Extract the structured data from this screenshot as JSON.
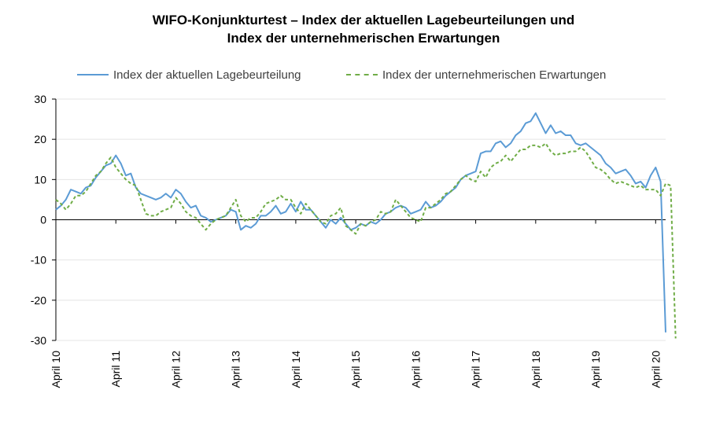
{
  "chart_data": {
    "type": "line",
    "title_lines": [
      "WIFO-Konjunkturtest – Index der aktuellen Lagebeurteilungen und",
      "Index der unternehmerischen Erwartungen"
    ],
    "xlabel": "",
    "ylabel": "",
    "ylim": [
      -30,
      30
    ],
    "yticks": [
      -30,
      -20,
      -10,
      0,
      10,
      20,
      30
    ],
    "x_tick_labels": [
      "April 10",
      "April 11",
      "April 12",
      "April 13",
      "April 14",
      "April 15",
      "April 16",
      "April 17",
      "April 18",
      "April 19",
      "April 20"
    ],
    "grid": "horizontal",
    "legend_position": "top",
    "series": [
      {
        "name": "Index der aktuellen Lagebeurteilung",
        "color": "#5b9bd5",
        "style": "solid",
        "values": [
          2.5,
          3.5,
          5,
          7.5,
          7,
          6.5,
          8,
          8.5,
          10.5,
          12,
          13.5,
          14,
          16,
          14,
          11,
          11.5,
          8,
          6.5,
          6,
          5.5,
          5,
          5.5,
          6.5,
          5.5,
          7.5,
          6.5,
          4.5,
          3,
          3.5,
          1,
          0.5,
          -0.5,
          0,
          0.5,
          1,
          2.5,
          2,
          -2.5,
          -1.5,
          -2,
          -1,
          1,
          1,
          2,
          3.5,
          1.5,
          2,
          4,
          2,
          4.5,
          2.5,
          2.5,
          1,
          -0.5,
          -2,
          0,
          -1,
          0.5,
          -1,
          -2.5,
          -2,
          -1,
          -1.5,
          -0.5,
          -1,
          0,
          1.5,
          2,
          3,
          3.5,
          3,
          1.5,
          2,
          2.5,
          4.5,
          3,
          3.5,
          4.5,
          6,
          7,
          8,
          10,
          11,
          11.5,
          12,
          16.5,
          17,
          17,
          19,
          19.5,
          18,
          19,
          21,
          22,
          24,
          24.5,
          26.5,
          24,
          21.5,
          23.5,
          21.5,
          22,
          21,
          21,
          19,
          18.5,
          19,
          18,
          17,
          16,
          14,
          13,
          11.5,
          12,
          12.5,
          11,
          9,
          9.5,
          8,
          11,
          13,
          9.5,
          -28
        ]
      },
      {
        "name": "Index der unternehmerischen Erwartungen",
        "color": "#70ad47",
        "style": "dashed",
        "values": [
          5,
          4,
          2.5,
          4,
          6,
          6,
          7,
          9,
          11,
          12,
          14,
          15.5,
          13,
          11.5,
          10,
          9,
          8.5,
          5,
          1.5,
          1,
          1,
          2,
          2.5,
          3,
          5.5,
          4,
          2,
          1,
          0.5,
          -1,
          -2.5,
          -1,
          0,
          0.5,
          1,
          3,
          5,
          1,
          -0.5,
          0.5,
          0.5,
          2,
          4,
          4.5,
          5,
          6,
          5,
          5,
          3,
          1.5,
          4,
          2.5,
          1,
          -0.5,
          -1,
          1,
          1.5,
          3,
          -1.5,
          -2.5,
          -3.5,
          -1,
          -1.5,
          -0.5,
          0,
          2,
          1.5,
          2,
          5,
          3.5,
          2,
          0.5,
          0,
          -0.5,
          3,
          3,
          4,
          5,
          6.5,
          7,
          8.5,
          10,
          11,
          10,
          9.5,
          12,
          10.5,
          13,
          14,
          14.5,
          16,
          14.5,
          16,
          17.5,
          17.5,
          18.5,
          18.5,
          18,
          19,
          17,
          16,
          16.5,
          16.5,
          17,
          17,
          18,
          17,
          15,
          13,
          12.5,
          11.5,
          10,
          9,
          9.5,
          9,
          8.5,
          8,
          8.5,
          7.5,
          7.5,
          7.5,
          6,
          9,
          8.5,
          -29.5
        ]
      }
    ]
  }
}
